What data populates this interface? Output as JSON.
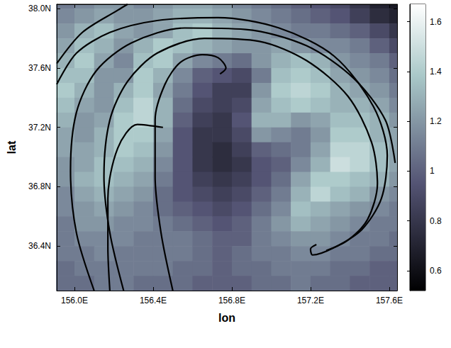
{
  "chart_data": {
    "type": "heatmap",
    "x_label": "lon",
    "y_label": "lat",
    "xlim": [
      155.91,
      157.64
    ],
    "xticks": [
      {
        "value": 156.0,
        "label": "156.0E"
      },
      {
        "value": 156.4,
        "label": "156.4E"
      },
      {
        "value": 156.8,
        "label": "156.8E"
      },
      {
        "value": 157.2,
        "label": "157.2E"
      },
      {
        "value": 157.6,
        "label": "157.6E"
      }
    ],
    "ylim": [
      36.1,
      38.03
    ],
    "yticks": [
      {
        "value": 36.4,
        "label": "36.4N"
      },
      {
        "value": 36.8,
        "label": "36.8N"
      },
      {
        "value": 37.2,
        "label": "37.2N"
      },
      {
        "value": 37.6,
        "label": "37.6N"
      },
      {
        "value": 38.0,
        "label": "38.0N"
      }
    ],
    "grid": false,
    "color": "#000000",
    "cells": {
      "x": [
        155.95,
        156.05,
        156.15,
        156.25,
        156.35,
        156.45,
        156.55,
        156.65,
        156.75,
        156.85,
        156.95,
        157.05,
        157.15,
        157.25,
        157.35,
        157.45,
        157.55,
        157.65
      ],
      "y": [
        38.05,
        37.95,
        37.85,
        37.75,
        37.65,
        37.55,
        37.45,
        37.35,
        37.25,
        37.15,
        37.05,
        36.95,
        36.85,
        36.75,
        36.65,
        36.55,
        36.45,
        36.35,
        36.25,
        36.15
      ],
      "values": [
        [
          1.1,
          1.15,
          1.2,
          1.2,
          1.15,
          1.2,
          1.25,
          1.25,
          1.2,
          1.15,
          1.1,
          1.05,
          1.0,
          0.95,
          0.9,
          0.8,
          0.7,
          0.65
        ],
        [
          1.15,
          1.2,
          1.25,
          1.2,
          1.2,
          1.25,
          1.3,
          1.3,
          1.25,
          1.2,
          1.15,
          1.1,
          1.05,
          1.0,
          0.95,
          0.85,
          0.75,
          0.7
        ],
        [
          1.2,
          1.3,
          1.35,
          1.25,
          1.2,
          1.25,
          1.35,
          1.4,
          1.3,
          1.25,
          1.2,
          1.15,
          1.1,
          1.1,
          1.05,
          1.0,
          0.9,
          0.8
        ],
        [
          1.25,
          1.35,
          1.3,
          1.2,
          1.3,
          1.4,
          1.35,
          1.3,
          1.25,
          1.2,
          1.2,
          1.25,
          1.2,
          1.15,
          1.15,
          1.1,
          1.0,
          0.9
        ],
        [
          1.3,
          1.4,
          1.25,
          1.15,
          1.35,
          1.4,
          1.25,
          1.15,
          1.1,
          1.05,
          1.2,
          1.3,
          1.35,
          1.3,
          1.2,
          1.15,
          1.1,
          1.0
        ],
        [
          1.35,
          1.35,
          1.2,
          1.2,
          1.4,
          1.3,
          1.15,
          1.0,
          0.95,
          0.9,
          1.1,
          1.35,
          1.4,
          1.35,
          1.25,
          1.2,
          1.15,
          1.05
        ],
        [
          1.4,
          1.3,
          1.2,
          1.3,
          1.4,
          1.25,
          1.1,
          0.95,
          0.85,
          0.85,
          1.2,
          1.4,
          1.45,
          1.4,
          1.3,
          1.25,
          1.2,
          1.1
        ],
        [
          1.35,
          1.25,
          1.2,
          1.35,
          1.45,
          1.3,
          1.05,
          0.9,
          0.85,
          0.9,
          1.25,
          1.35,
          1.4,
          1.35,
          1.3,
          1.3,
          1.25,
          1.15
        ],
        [
          1.3,
          1.2,
          1.25,
          1.4,
          1.45,
          1.3,
          1.0,
          0.85,
          0.8,
          0.95,
          1.3,
          1.3,
          1.2,
          1.25,
          1.35,
          1.35,
          1.3,
          1.2
        ],
        [
          1.25,
          1.2,
          1.3,
          1.4,
          1.4,
          1.25,
          0.95,
          0.8,
          0.8,
          0.9,
          1.2,
          1.15,
          1.1,
          1.2,
          1.4,
          1.4,
          1.3,
          1.25
        ],
        [
          1.25,
          1.25,
          1.3,
          1.4,
          1.35,
          1.2,
          0.95,
          0.8,
          0.75,
          0.85,
          1.0,
          1.05,
          1.1,
          1.25,
          1.45,
          1.45,
          1.35,
          1.25
        ],
        [
          1.2,
          1.25,
          1.35,
          1.35,
          1.3,
          1.15,
          0.95,
          0.8,
          0.75,
          0.8,
          0.95,
          1.0,
          1.15,
          1.3,
          1.5,
          1.45,
          1.35,
          1.25
        ],
        [
          1.2,
          1.3,
          1.35,
          1.3,
          1.25,
          1.1,
          0.95,
          0.85,
          0.8,
          0.85,
          0.95,
          1.05,
          1.25,
          1.4,
          1.4,
          1.35,
          1.3,
          1.2
        ],
        [
          1.15,
          1.25,
          1.3,
          1.25,
          1.2,
          1.05,
          0.95,
          0.9,
          0.85,
          0.9,
          1.0,
          1.1,
          1.3,
          1.45,
          1.35,
          1.3,
          1.2,
          1.15
        ],
        [
          1.15,
          1.2,
          1.25,
          1.2,
          1.15,
          1.05,
          1.0,
          0.95,
          0.9,
          0.95,
          1.05,
          1.15,
          1.35,
          1.3,
          1.25,
          1.2,
          1.15,
          1.1
        ],
        [
          1.1,
          1.2,
          1.2,
          1.15,
          1.15,
          1.1,
          1.05,
          1.0,
          0.95,
          1.0,
          1.1,
          1.2,
          1.3,
          1.25,
          1.2,
          1.15,
          1.1,
          1.1
        ],
        [
          1.1,
          1.15,
          1.15,
          1.15,
          1.1,
          1.1,
          1.1,
          1.05,
          1.0,
          1.0,
          1.1,
          1.15,
          1.2,
          1.2,
          1.15,
          1.1,
          1.1,
          1.05
        ],
        [
          1.1,
          1.1,
          1.15,
          1.1,
          1.1,
          1.1,
          1.1,
          1.05,
          1.0,
          1.05,
          1.1,
          1.1,
          1.15,
          1.15,
          1.1,
          1.1,
          1.05,
          1.05
        ],
        [
          1.05,
          1.1,
          1.1,
          1.1,
          1.1,
          1.1,
          1.05,
          1.05,
          1.0,
          1.05,
          1.05,
          1.1,
          1.1,
          1.1,
          1.05,
          1.05,
          1.0,
          1.0
        ],
        [
          1.05,
          1.05,
          1.1,
          1.1,
          1.05,
          1.05,
          1.05,
          1.0,
          1.0,
          1.0,
          1.05,
          1.05,
          1.1,
          1.05,
          1.05,
          1.0,
          1.0,
          1.0
        ]
      ]
    },
    "colorbar": {
      "lim": [
        0.52,
        1.67
      ],
      "ticks": [
        0.6,
        0.8,
        1,
        1.2,
        1.4,
        1.6
      ]
    },
    "curves": [
      {
        "x": [
          156.5,
          156.44,
          156.41,
          156.41,
          156.46,
          156.54,
          156.65,
          156.73,
          156.77,
          156.74
        ],
        "y": [
          36.1,
          36.49,
          36.87,
          37.25,
          37.49,
          37.64,
          37.69,
          37.67,
          37.6,
          37.56
        ]
      },
      {
        "x": [
          155.91,
          156.01,
          156.18,
          156.42,
          156.73,
          157.04,
          157.32,
          157.52,
          157.59,
          157.56,
          157.46,
          157.32,
          157.21,
          157.2,
          157.23
        ],
        "y": [
          37.49,
          37.7,
          37.84,
          37.92,
          37.94,
          37.87,
          37.68,
          37.34,
          37.01,
          36.72,
          36.51,
          36.39,
          36.34,
          36.38,
          36.41
        ]
      },
      {
        "x": [
          156.1,
          156.01,
          155.98,
          156.01,
          156.11,
          156.29,
          156.56,
          156.87,
          157.18,
          157.42,
          157.58,
          157.63
        ],
        "y": [
          36.1,
          36.49,
          36.91,
          37.3,
          37.58,
          37.77,
          37.87,
          37.86,
          37.75,
          37.53,
          37.25,
          36.96
        ]
      },
      {
        "x": [
          156.25,
          156.18,
          156.15,
          156.18,
          156.27,
          156.42,
          156.66,
          156.94,
          157.18,
          157.39,
          157.51,
          157.54,
          157.49,
          157.39,
          157.28
        ],
        "y": [
          36.1,
          36.49,
          36.87,
          37.25,
          37.51,
          37.7,
          37.8,
          37.78,
          37.65,
          37.41,
          37.1,
          36.82,
          36.58,
          36.44,
          36.37
        ]
      },
      {
        "x": [
          156.45,
          156.32,
          156.22,
          156.17,
          156.17,
          156.18
        ],
        "y": [
          37.2,
          37.22,
          37.06,
          36.72,
          36.39,
          36.1
        ]
      },
      {
        "x": [
          155.91,
          156.04,
          156.22,
          156.27
        ],
        "y": [
          37.63,
          37.84,
          37.99,
          38.03
        ]
      }
    ]
  }
}
